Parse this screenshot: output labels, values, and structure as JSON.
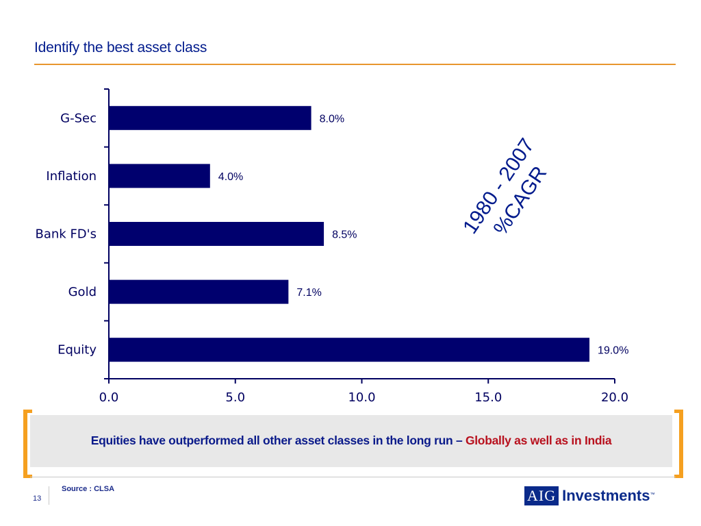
{
  "slide": {
    "title": "Identify the best asset class",
    "page_number": "13",
    "source": "Source : CLSA"
  },
  "callout": {
    "text_main": "Equities have outperformed all other asset classes in the long run –",
    "text_highlight": "Globally as well as in India"
  },
  "logo": {
    "box_text": "AIG",
    "word": "Investments",
    "trademark": "™"
  },
  "colors": {
    "bar": "#00006e",
    "title": "#001a8c",
    "accent_rule": "#e8962e",
    "bracket": "#f5a020",
    "highlight": "#b8111e"
  },
  "chart_data": {
    "type": "bar",
    "orientation": "horizontal",
    "categories": [
      "G-Sec",
      "Inflation",
      "Bank FD's",
      "Gold",
      "Equity"
    ],
    "values": [
      8.0,
      4.0,
      8.5,
      7.1,
      19.0
    ],
    "value_labels": [
      "8.0%",
      "4.0%",
      "8.5%",
      "7.1%",
      "19.0%"
    ],
    "xlim": [
      0,
      20
    ],
    "x_ticks": [
      "0.0",
      "5.0",
      "10.0",
      "15.0",
      "20.0"
    ],
    "annotation": [
      "1980 - 2007",
      "%CAGR"
    ],
    "grid": false,
    "legend": "none"
  }
}
